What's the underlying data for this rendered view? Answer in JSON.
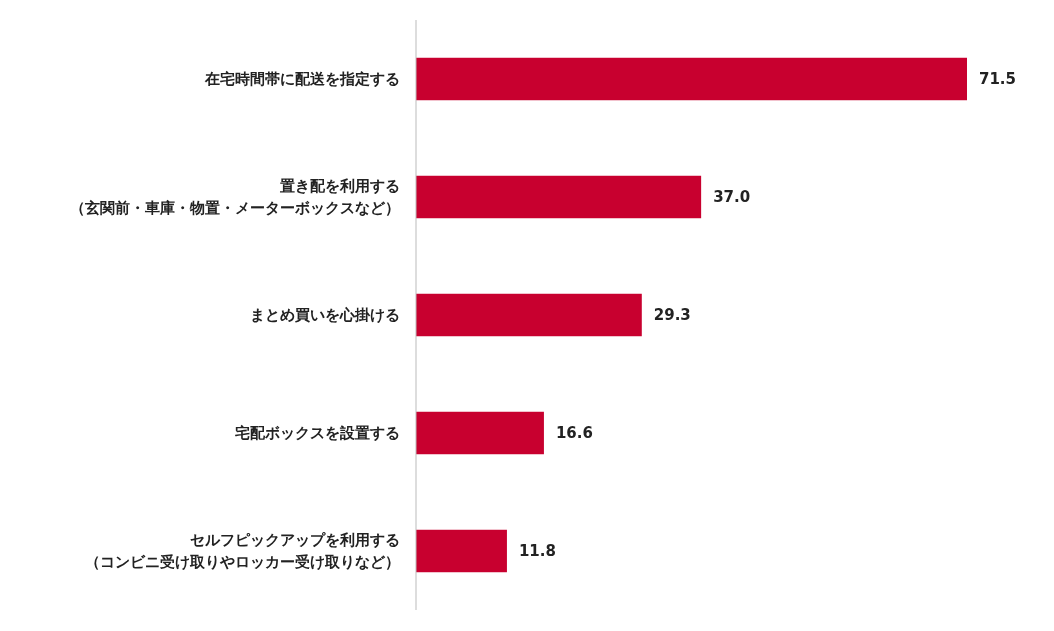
{
  "chart_data": {
    "type": "bar",
    "orientation": "horizontal",
    "categories": [
      "在宅時間帯に配送を指定する",
      "置き配を利用する（玄関前・車庫・物置・メーターボックスなど）",
      "まとめ買いを心掛ける",
      "宅配ボックスを設置する",
      "セルフピックアップを利用する（コンビニ受け取りやロッカー受け取りなど）"
    ],
    "values": [
      71.5,
      37.0,
      29.3,
      16.6,
      11.8
    ],
    "value_labels": [
      "71.5",
      "37.0",
      "29.3",
      "16.6",
      "11.8"
    ],
    "color": "#c8002f",
    "tick_labels": "y"
  }
}
